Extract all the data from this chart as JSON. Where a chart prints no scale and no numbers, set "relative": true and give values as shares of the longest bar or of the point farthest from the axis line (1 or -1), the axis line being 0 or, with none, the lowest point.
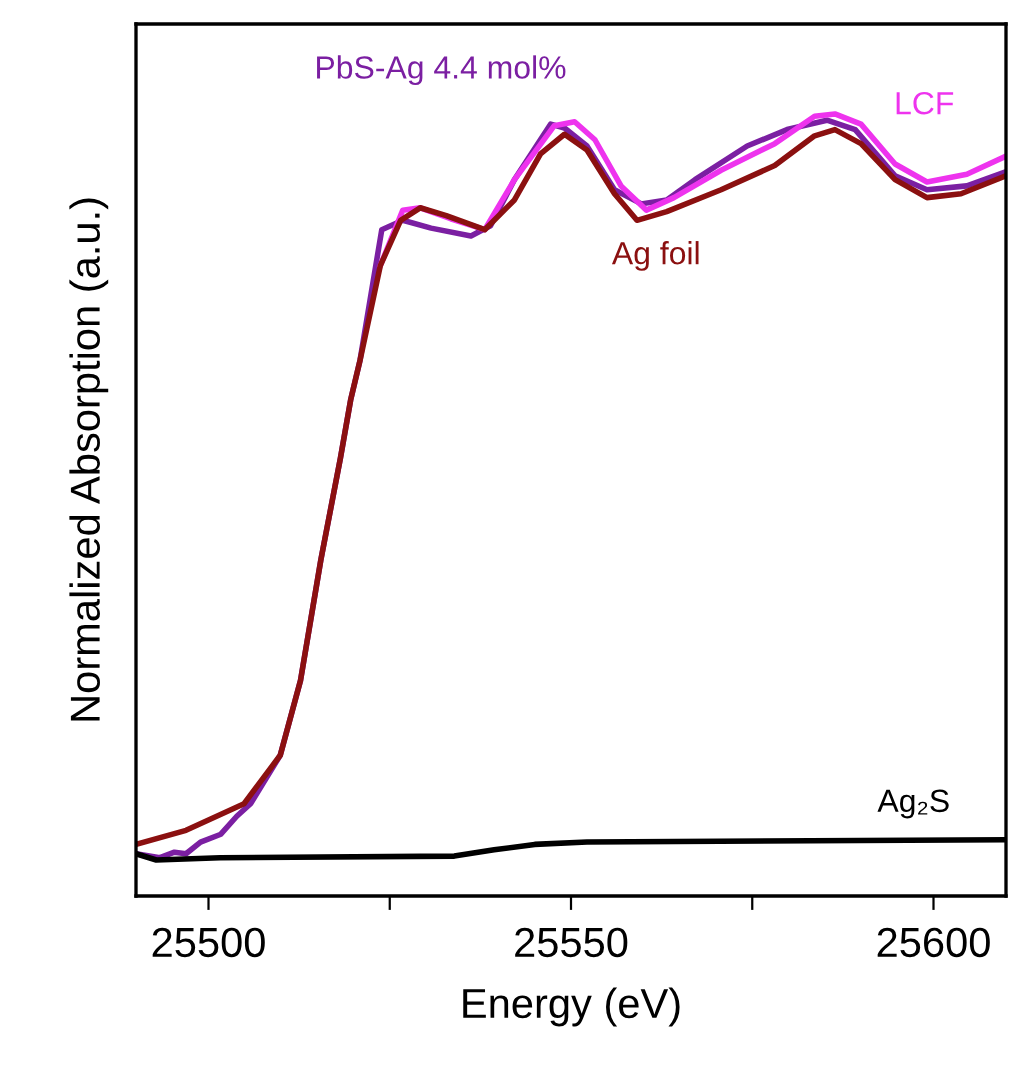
{
  "chart_data": {
    "type": "line",
    "xlabel": "Energy (eV)",
    "ylabel": "Normalized Absorption (a.u.)",
    "relative": true,
    "xlim": [
      25490,
      25610
    ],
    "xticks": [
      25500,
      {
        "value": 25525,
        "label": null
      },
      25550,
      {
        "value": 25575,
        "label": null
      },
      25600
    ],
    "grid": false,
    "legend": false,
    "marker": "none",
    "line_style": "solid",
    "series": [
      {
        "name": "PbS-Ag 4.4 mol%",
        "color": "#7b1fa2",
        "x": [
          25490,
          25493.3,
          25495.3,
          25496.9,
          25498.9,
          25501.7,
          25503.9,
          25505.8,
          25509.9,
          25512.7,
          25515.5,
          25518.2,
          25519.6,
          25520.9,
          25523.9,
          25526.8,
          25530.7,
          25536.2,
          25538.9,
          25542.2,
          25547.2,
          25549.1,
          25552.2,
          25556,
          25559.7,
          25563.2,
          25567.1,
          25574.3,
          25579.8,
          25585.3,
          25589.2,
          25594.7,
          25599.1,
          25604.6,
          25610
        ],
        "values": [
          0.054,
          0.049,
          0.056,
          0.054,
          0.069,
          0.079,
          0.102,
          0.118,
          0.18,
          0.276,
          0.43,
          0.56,
          0.634,
          0.685,
          0.852,
          0.864,
          0.854,
          0.844,
          0.857,
          0.916,
          0.987,
          0.982,
          0.959,
          0.903,
          0.885,
          0.89,
          0.916,
          0.959,
          0.98,
          0.992,
          0.98,
          0.921,
          0.903,
          0.908,
          0.926
        ]
      },
      {
        "name": "LCF",
        "color": "#ee33ee",
        "x": [
          25523.7,
          25526.8,
          25529.2,
          25533.4,
          25538.1,
          25542.2,
          25547.7,
          25550.5,
          25553.3,
          25556.9,
          25560.4,
          25564.2,
          25570.7,
          25578.1,
          25583.6,
          25586.4,
          25590,
          25594.7,
          25599.1,
          25604.6,
          25610
        ],
        "values": [
          0.806,
          0.877,
          0.88,
          0.866,
          0.852,
          0.916,
          0.985,
          0.99,
          0.967,
          0.908,
          0.877,
          0.893,
          0.928,
          0.962,
          0.997,
          1.0,
          0.987,
          0.936,
          0.913,
          0.923,
          0.946
        ]
      },
      {
        "name": "Ag foil",
        "color": "#8b1010",
        "x": [
          25490,
          25496.9,
          25504.9,
          25509.9,
          25512.7,
          25515.5,
          25518.2,
          25519.6,
          25520.9,
          25523.7,
          25526.5,
          25529.2,
          25532.8,
          25538.1,
          25542.2,
          25545.8,
          25549.1,
          25552.2,
          25556,
          25559.1,
          25563.2,
          25570.7,
          25578.1,
          25583.6,
          25586.4,
          25590,
          25594.7,
          25599.1,
          25603.8,
          25610
        ],
        "values": [
          0.066,
          0.084,
          0.118,
          0.18,
          0.276,
          0.43,
          0.56,
          0.634,
          0.685,
          0.806,
          0.864,
          0.88,
          0.87,
          0.852,
          0.89,
          0.949,
          0.974,
          0.954,
          0.898,
          0.864,
          0.875,
          0.903,
          0.934,
          0.972,
          0.98,
          0.962,
          0.916,
          0.893,
          0.898,
          0.921
        ]
      },
      {
        "name": "Ag₂S",
        "color": "#000000",
        "x": [
          25490,
          25492.8,
          25501.6,
          25533.9,
          25539.4,
          25545,
          25552.2,
          25610
        ],
        "values": [
          0.054,
          0.046,
          0.049,
          0.051,
          0.059,
          0.066,
          0.069,
          0.072
        ]
      }
    ]
  }
}
